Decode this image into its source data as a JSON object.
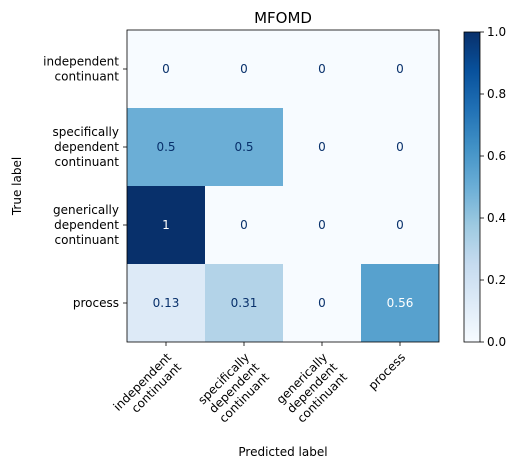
{
  "chart_data": {
    "type": "heatmap",
    "title": "MFOMD",
    "xlabel": "Predicted label",
    "ylabel": "True label",
    "colormap": "Blues",
    "row_labels": [
      [
        "independent",
        "continuant"
      ],
      [
        "specifically",
        "dependent",
        "continuant"
      ],
      [
        "generically",
        "dependent",
        "continuant"
      ],
      [
        "process"
      ]
    ],
    "col_labels": [
      [
        "independent",
        "continuant"
      ],
      [
        "specifically",
        "dependent",
        "continuant"
      ],
      [
        "generically",
        "dependent",
        "continuant"
      ],
      [
        "process"
      ]
    ],
    "values": [
      [
        0,
        0,
        0,
        0
      ],
      [
        0.5,
        0.5,
        0,
        0
      ],
      [
        1,
        0,
        0,
        0
      ],
      [
        0.13,
        0.31,
        0,
        0.56
      ]
    ],
    "value_labels": [
      [
        "0",
        "0",
        "0",
        "0"
      ],
      [
        "0.5",
        "0.5",
        "0",
        "0"
      ],
      [
        "1",
        "0",
        "0",
        "0"
      ],
      [
        "0.13",
        "0.31",
        "0",
        "0.56"
      ]
    ],
    "colorbar": {
      "range": [
        0,
        1
      ],
      "ticks": [
        "0.0",
        "0.2",
        "0.4",
        "0.6",
        "0.8",
        "1.0"
      ]
    }
  }
}
